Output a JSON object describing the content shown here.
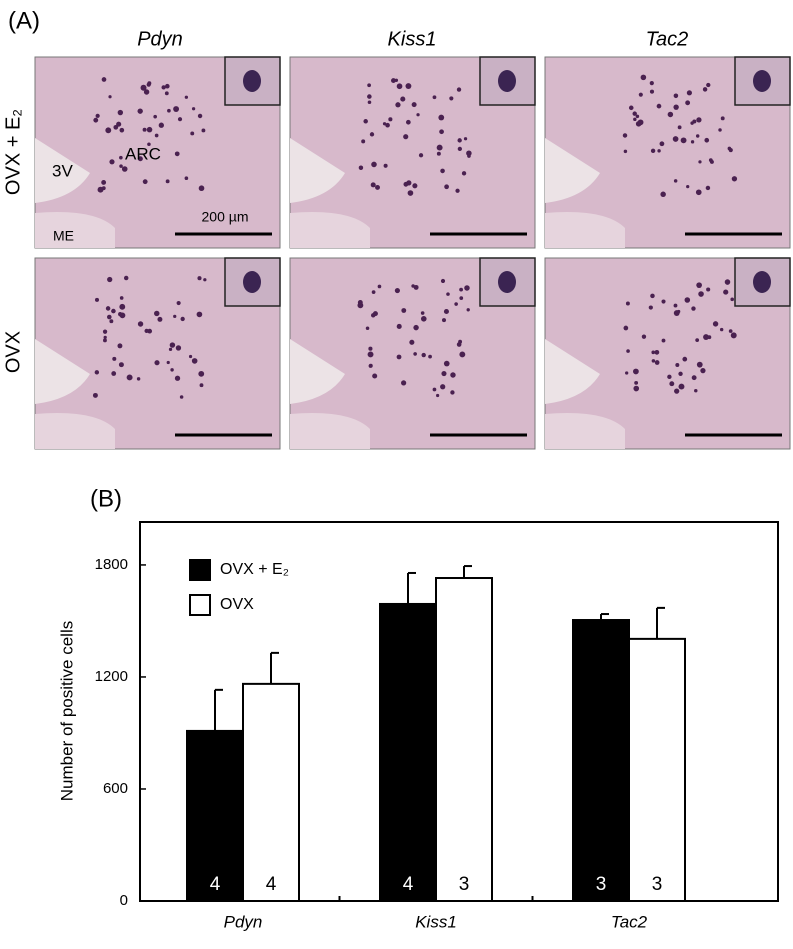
{
  "panel_a": {
    "label": "(A)",
    "columns": [
      "Pdyn",
      "Kiss1",
      "Tac2"
    ],
    "rows": [
      "OVX + E₂",
      "OVX"
    ],
    "annotations": {
      "ventricle": "3V",
      "nucleus": "ARC",
      "eminence": "ME",
      "scale": "200 µm"
    }
  },
  "chart_data": {
    "type": "bar",
    "panel_label": "(B)",
    "y_label": "Number of positive cells",
    "categories": [
      "Pdyn",
      "Kiss1",
      "Tac2"
    ],
    "series": [
      {
        "name": "OVX + E₂",
        "color": "#000000",
        "values": [
          911,
          1591,
          1505
        ],
        "errors": [
          220,
          166,
          32
        ],
        "n": [
          4,
          4,
          3
        ]
      },
      {
        "name": "OVX",
        "color": "#ffffff",
        "values": [
          1163,
          1730,
          1404
        ],
        "errors": [
          166,
          64,
          166
        ],
        "n": [
          4,
          3,
          3
        ]
      }
    ],
    "ylim": [
      0,
      2030
    ],
    "yticks": [
      0,
      600,
      1200,
      1800
    ],
    "legend": "upper left",
    "grid": false
  }
}
